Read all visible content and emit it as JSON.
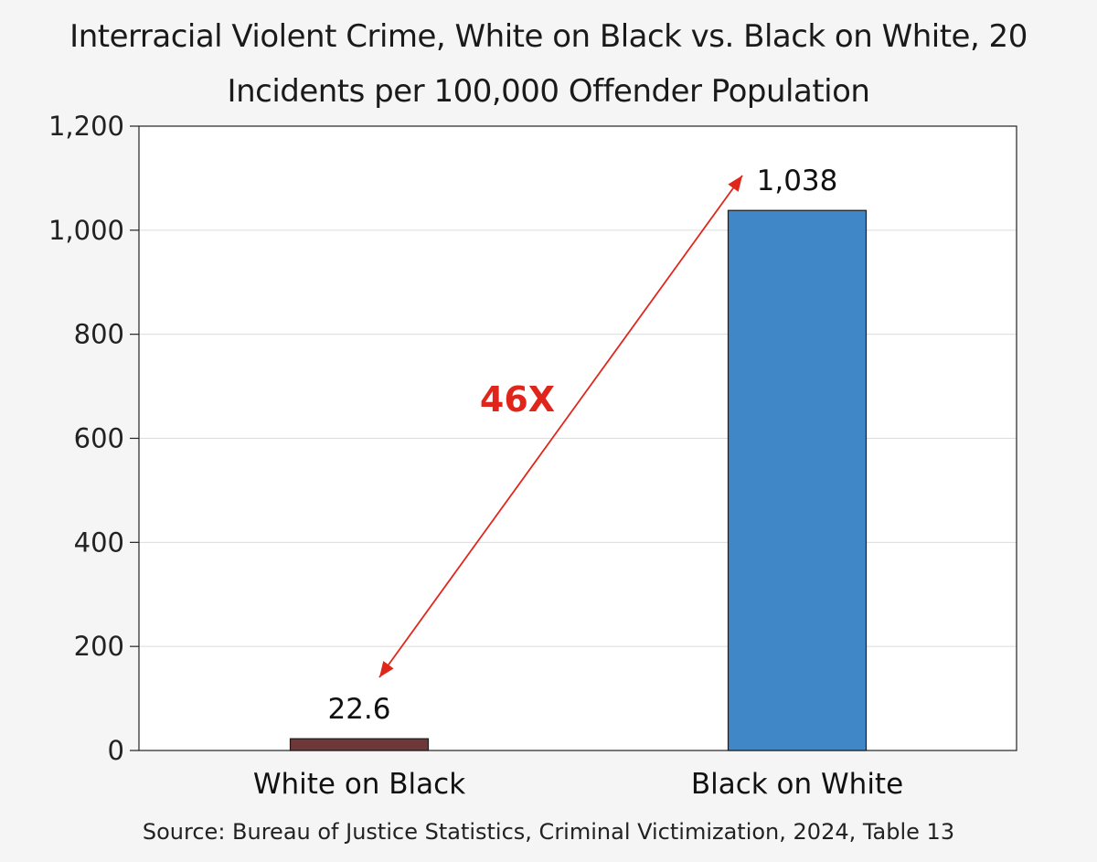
{
  "chart_data": {
    "type": "bar",
    "title": "Interracial Violent Crime, White on Black vs. Black on White, 20",
    "subtitle": "Incidents per 100,000 Offender Population",
    "categories": [
      "White on Black",
      "Black on White"
    ],
    "values": [
      22.6,
      1038
    ],
    "value_labels": [
      "22.6",
      "1,038"
    ],
    "bar_colors": [
      "#6e3838",
      "#3f87c7"
    ],
    "ylim": [
      0,
      1200
    ],
    "yticks": [
      0,
      200,
      400,
      600,
      800,
      1000,
      1200
    ],
    "ytick_labels": [
      "0",
      "200",
      "400",
      "600",
      "800",
      "1,000",
      "1,200"
    ],
    "grid": true,
    "annotation": {
      "text": "46X",
      "color": "#e0261b",
      "from_category": "White on Black",
      "to_category": "Black on White"
    },
    "source": "Source: Bureau of Justice Statistics, Criminal Victimization, 2024, Table 13"
  }
}
